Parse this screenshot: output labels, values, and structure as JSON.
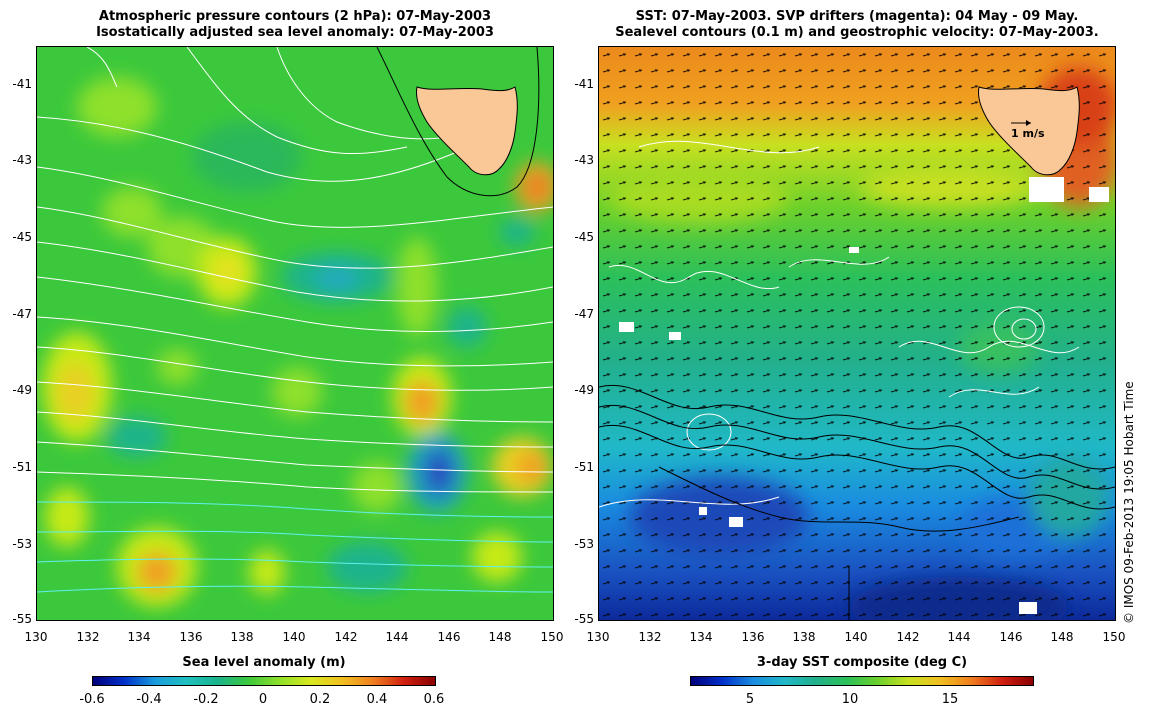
{
  "left_panel": {
    "title_line1": "Atmospheric pressure contours (2 hPa): 07-May-2003",
    "title_line2": "Isostatically adjusted sea level anomaly: 07-May-2003",
    "y_ticks": [
      "-41",
      "-43",
      "-45",
      "-47",
      "-49",
      "-51",
      "-53",
      "-55"
    ],
    "x_ticks": [
      "130",
      "132",
      "134",
      "136",
      "138",
      "140",
      "142",
      "144",
      "146",
      "148",
      "150"
    ],
    "colorbar_title": "Sea level anomaly (m)",
    "colorbar_ticks": [
      "-0.6",
      "-0.4",
      "-0.2",
      "0",
      "0.2",
      "0.4",
      "0.6"
    ]
  },
  "right_panel": {
    "title_line1": "SST: 07-May-2003. SVP drifters (magenta): 04 May - 09 May.",
    "title_line2": "Sealevel contours (0.1 m) and geostrophic velocity: 07-May-2003.",
    "y_ticks": [
      "-41",
      "-43",
      "-45",
      "-47",
      "-49",
      "-51",
      "-53",
      "-55"
    ],
    "x_ticks": [
      "130",
      "132",
      "134",
      "136",
      "138",
      "140",
      "142",
      "144",
      "146",
      "148",
      "150"
    ],
    "scale_arrow_label": "1 m/s",
    "colorbar_title": "3-day SST composite (deg C)",
    "colorbar_ticks": [
      "5",
      "10",
      "15"
    ]
  },
  "credit": "© IMOS 09-Feb-2013 19:05 Hobart Time",
  "colors": {
    "land": "#fac796",
    "sla_base": "#38c83c",
    "sst_warm": "#ee8c1a",
    "sst_cold": "#1a52c8"
  }
}
